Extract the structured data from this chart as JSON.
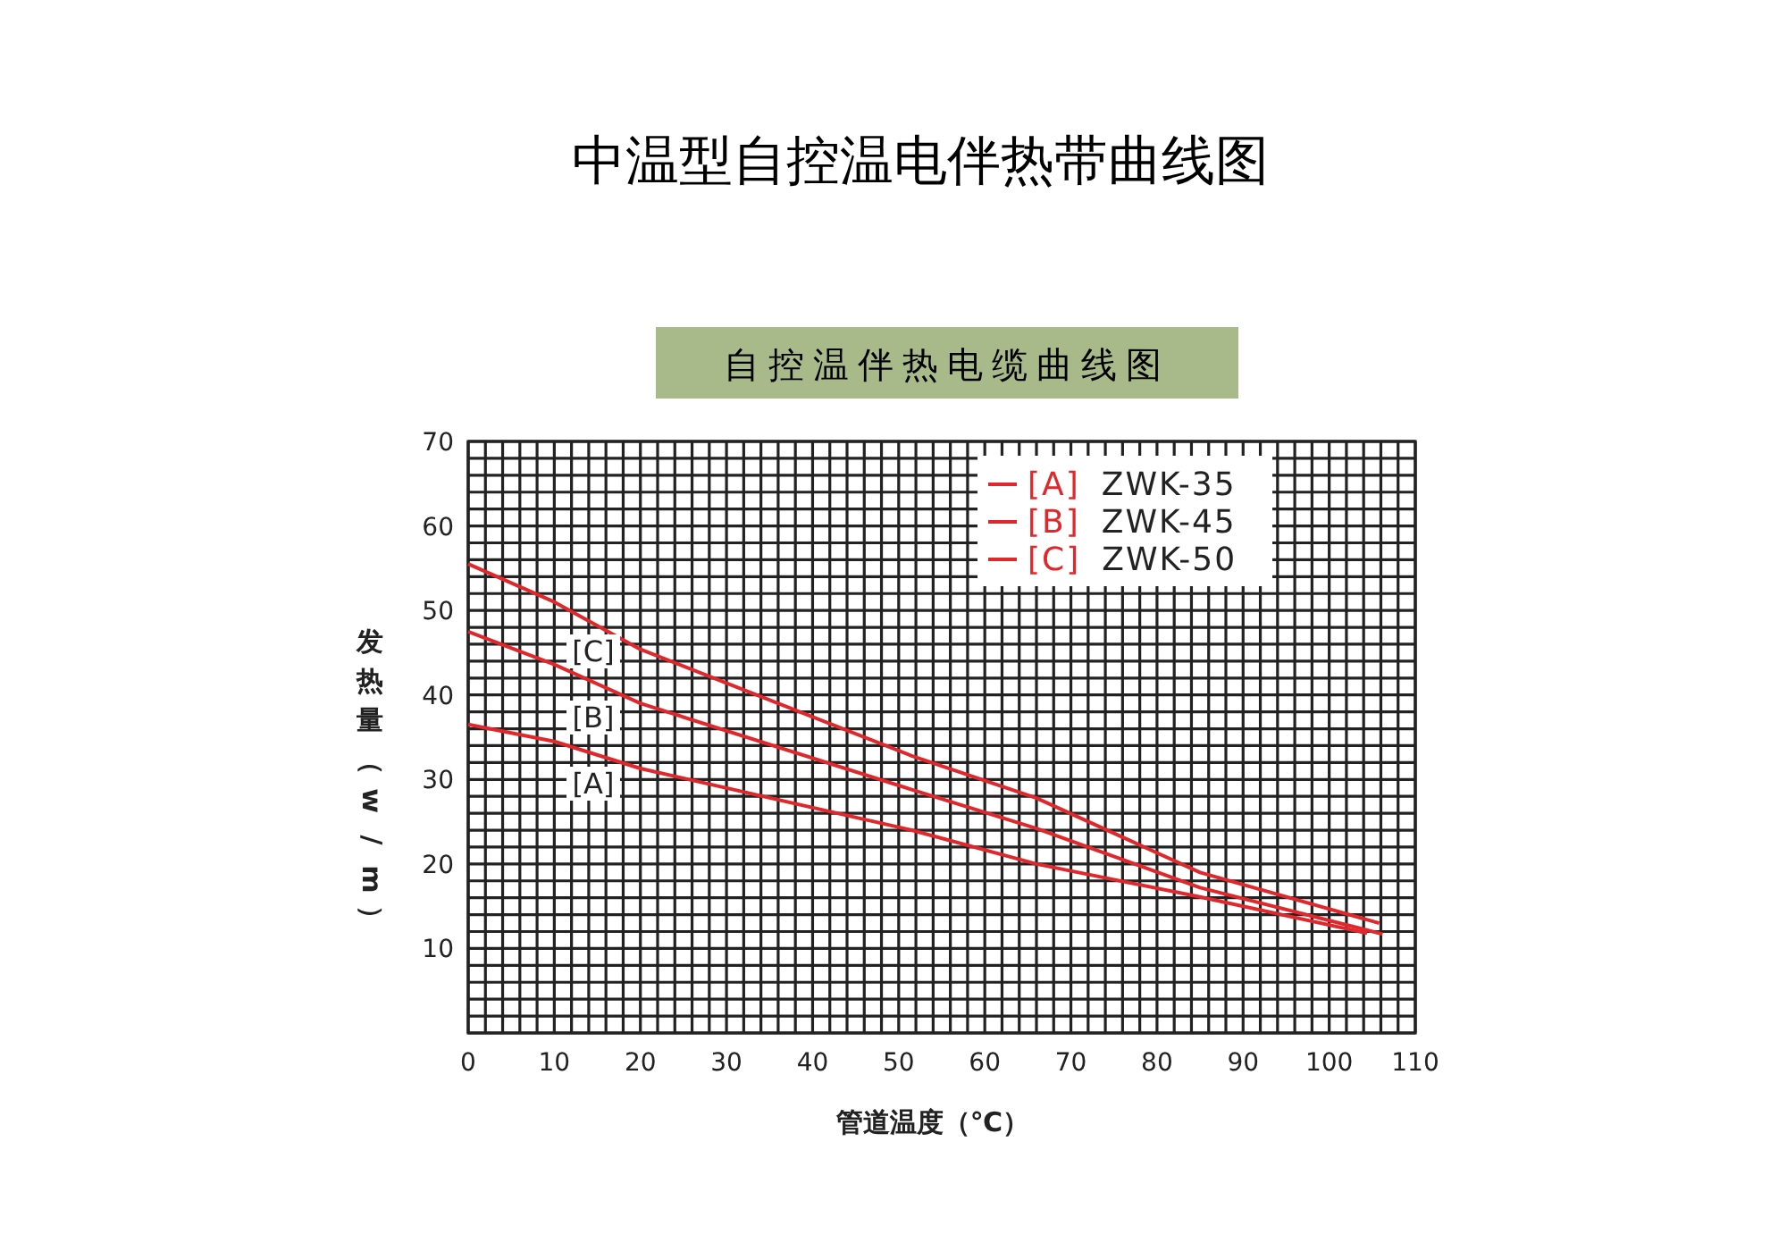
{
  "chart_data": {
    "type": "line",
    "title": "中温型自控温电伴热带曲线图",
    "subtitle": "自控温伴热电缆曲线图",
    "xlabel": "管道温度（℃）",
    "ylabel": "发热量（w/m）",
    "xlim": [
      0,
      110
    ],
    "ylim": [
      0,
      70
    ],
    "xticks": [
      0,
      {
        "value": 2,
        "label": null
      },
      {
        "value": 4,
        "label": null
      },
      {
        "value": 6,
        "label": null
      },
      {
        "value": 8,
        "label": null
      },
      10,
      {
        "value": 12,
        "label": null
      },
      {
        "value": 14,
        "label": null
      },
      {
        "value": 16,
        "label": null
      },
      {
        "value": 18,
        "label": null
      },
      20,
      {
        "value": 22,
        "label": null
      },
      {
        "value": 24,
        "label": null
      },
      {
        "value": 26,
        "label": null
      },
      {
        "value": 28,
        "label": null
      },
      30,
      {
        "value": 32,
        "label": null
      },
      {
        "value": 34,
        "label": null
      },
      {
        "value": 36,
        "label": null
      },
      {
        "value": 38,
        "label": null
      },
      40,
      {
        "value": 42,
        "label": null
      },
      {
        "value": 44,
        "label": null
      },
      {
        "value": 46,
        "label": null
      },
      {
        "value": 48,
        "label": null
      },
      50,
      {
        "value": 52,
        "label": null
      },
      {
        "value": 54,
        "label": null
      },
      {
        "value": 56,
        "label": null
      },
      {
        "value": 58,
        "label": null
      },
      60,
      {
        "value": 62,
        "label": null
      },
      {
        "value": 64,
        "label": null
      },
      {
        "value": 66,
        "label": null
      },
      {
        "value": 68,
        "label": null
      },
      70,
      {
        "value": 72,
        "label": null
      },
      {
        "value": 74,
        "label": null
      },
      {
        "value": 76,
        "label": null
      },
      {
        "value": 78,
        "label": null
      },
      80,
      {
        "value": 82,
        "label": null
      },
      {
        "value": 84,
        "label": null
      },
      {
        "value": 86,
        "label": null
      },
      {
        "value": 88,
        "label": null
      },
      90,
      {
        "value": 92,
        "label": null
      },
      {
        "value": 94,
        "label": null
      },
      {
        "value": 96,
        "label": null
      },
      {
        "value": 98,
        "label": null
      },
      100,
      {
        "value": 102,
        "label": null
      },
      {
        "value": 104,
        "label": null
      },
      {
        "value": 106,
        "label": null
      },
      {
        "value": 108,
        "label": null
      },
      110
    ],
    "yticks": [
      {
        "value": 0,
        "label": null
      },
      {
        "value": 2,
        "label": null
      },
      {
        "value": 4,
        "label": null
      },
      {
        "value": 6,
        "label": null
      },
      {
        "value": 8,
        "label": null
      },
      10,
      {
        "value": 12,
        "label": null
      },
      {
        "value": 14,
        "label": null
      },
      {
        "value": 16,
        "label": null
      },
      {
        "value": 18,
        "label": null
      },
      20,
      {
        "value": 22,
        "label": null
      },
      {
        "value": 24,
        "label": null
      },
      {
        "value": 26,
        "label": null
      },
      {
        "value": 28,
        "label": null
      },
      30,
      {
        "value": 32,
        "label": null
      },
      {
        "value": 34,
        "label": null
      },
      {
        "value": 36,
        "label": null
      },
      {
        "value": 38,
        "label": null
      },
      40,
      {
        "value": 42,
        "label": null
      },
      {
        "value": 44,
        "label": null
      },
      {
        "value": 46,
        "label": null
      },
      {
        "value": 48,
        "label": null
      },
      50,
      {
        "value": 52,
        "label": null
      },
      {
        "value": 54,
        "label": null
      },
      {
        "value": 56,
        "label": null
      },
      {
        "value": 58,
        "label": null
      },
      60,
      {
        "value": 62,
        "label": null
      },
      {
        "value": 64,
        "label": null
      },
      {
        "value": 66,
        "label": null
      },
      {
        "value": 68,
        "label": null
      },
      70
    ],
    "grid": true,
    "legend": "top right",
    "series": [
      {
        "name": "[A] ZWK-35",
        "color": "#e0282c",
        "x": [
          0,
          10,
          20,
          51.5,
          66,
          85,
          104.4
        ],
        "values": [
          36.5,
          34.5,
          31.3,
          24.0,
          20.0,
          16.1,
          11.8
        ]
      },
      {
        "name": "[B] ZWK-45",
        "color": "#e0282c",
        "x": [
          0,
          10,
          20,
          51.5,
          66,
          85,
          106.2
        ],
        "values": [
          47.5,
          43.6,
          39.0,
          28.8,
          24.2,
          17.2,
          11.7
        ]
      },
      {
        "name": "[C] ZWK-50",
        "color": "#e0282c",
        "x": [
          0,
          10,
          20,
          51.5,
          66,
          85,
          105.8
        ],
        "values": [
          55.5,
          51.0,
          45.4,
          32.8,
          27.8,
          19.0,
          13.0
        ]
      }
    ],
    "annotations": [
      "[C]",
      "[B]",
      "[A]"
    ]
  }
}
